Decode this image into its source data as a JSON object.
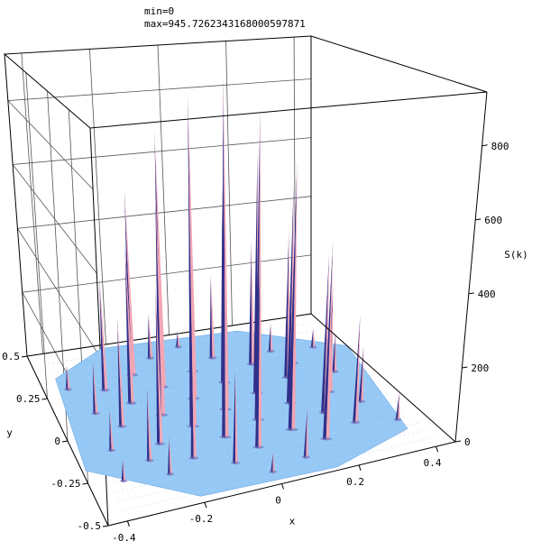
{
  "chart_data": {
    "type": "surface3d",
    "annotation": {
      "min_label": "min=0",
      "max_label": "max=945.7262343168000597871"
    },
    "x_axis": {
      "label": "x",
      "range": [
        -0.45,
        0.45
      ],
      "ticks": [
        {
          "value": -0.4,
          "label": "-0.4"
        },
        {
          "value": -0.2,
          "label": "-0.2"
        },
        {
          "value": 0,
          "label": "0"
        },
        {
          "value": 0.2,
          "label": "0.2"
        },
        {
          "value": 0.4,
          "label": "0.4"
        }
      ]
    },
    "y_axis": {
      "label": "y",
      "range": [
        -0.5,
        0.5
      ],
      "ticks": [
        {
          "value": -0.5,
          "label": "-0.5"
        },
        {
          "value": -0.25,
          "label": "-0.25"
        },
        {
          "value": 0,
          "label": "0"
        },
        {
          "value": 0.25,
          "label": "0.25"
        },
        {
          "value": 0.5,
          "label": "0.5"
        }
      ]
    },
    "z_axis": {
      "label": "S(k)",
      "range": [
        0,
        945.73
      ],
      "ticks": [
        {
          "value": 0,
          "label": "0"
        },
        {
          "value": 200,
          "label": "200"
        },
        {
          "value": 400,
          "label": "400"
        },
        {
          "value": 600,
          "label": "600"
        },
        {
          "value": 800,
          "label": "800"
        }
      ]
    },
    "surface_color": "#96c8f5",
    "spike_colors": {
      "light": "#f2a6b4",
      "dark": "#30308a"
    },
    "peaks": [
      {
        "x": 0.0,
        "y": 0.0,
        "z": 945.7
      },
      {
        "x": -0.06,
        "y": 0.1,
        "z": 880
      },
      {
        "x": 0.06,
        "y": -0.1,
        "z": 870
      },
      {
        "x": -0.12,
        "y": 0.2,
        "z": 760
      },
      {
        "x": 0.12,
        "y": -0.2,
        "z": 740
      },
      {
        "x": -0.18,
        "y": 0.3,
        "z": 560
      },
      {
        "x": 0.18,
        "y": -0.3,
        "z": 540
      },
      {
        "x": -0.11,
        "y": -0.06,
        "z": 720
      },
      {
        "x": 0.11,
        "y": 0.06,
        "z": 700
      },
      {
        "x": -0.17,
        "y": 0.04,
        "z": 640
      },
      {
        "x": 0.17,
        "y": -0.04,
        "z": 630
      },
      {
        "x": -0.05,
        "y": -0.16,
        "z": 600
      },
      {
        "x": 0.05,
        "y": 0.16,
        "z": 590
      },
      {
        "x": -0.23,
        "y": 0.14,
        "z": 460
      },
      {
        "x": 0.23,
        "y": -0.14,
        "z": 450
      },
      {
        "x": -0.22,
        "y": -0.12,
        "z": 420
      },
      {
        "x": 0.22,
        "y": 0.12,
        "z": 440
      },
      {
        "x": -0.28,
        "y": 0.24,
        "z": 330
      },
      {
        "x": 0.28,
        "y": -0.24,
        "z": 300
      },
      {
        "x": -0.01,
        "y": 0.26,
        "z": 520
      },
      {
        "x": 0.01,
        "y": -0.26,
        "z": 500
      },
      {
        "x": -0.29,
        "y": 0.02,
        "z": 300
      },
      {
        "x": 0.29,
        "y": -0.02,
        "z": 310
      },
      {
        "x": -0.16,
        "y": -0.24,
        "z": 360
      },
      {
        "x": 0.16,
        "y": 0.24,
        "z": 380
      },
      {
        "x": 0.07,
        "y": 0.32,
        "z": 260
      },
      {
        "x": -0.07,
        "y": -0.32,
        "z": 240
      },
      {
        "x": -0.34,
        "y": 0.12,
        "z": 150
      },
      {
        "x": 0.34,
        "y": -0.12,
        "z": 160
      },
      {
        "x": 0.27,
        "y": 0.2,
        "z": 200
      },
      {
        "x": -0.27,
        "y": -0.2,
        "z": 190
      },
      {
        "x": -0.35,
        "y": -0.1,
        "z": 110
      },
      {
        "x": 0.35,
        "y": 0.1,
        "z": 120
      },
      {
        "x": -0.1,
        "y": 0.38,
        "z": 140
      },
      {
        "x": 0.1,
        "y": -0.38,
        "z": 130
      },
      {
        "x": 0.24,
        "y": 0.3,
        "z": 90
      },
      {
        "x": -0.24,
        "y": -0.3,
        "z": 95
      },
      {
        "x": -0.38,
        "y": 0.28,
        "z": 70
      },
      {
        "x": 0.38,
        "y": -0.28,
        "z": 75
      },
      {
        "x": 0.36,
        "y": 0.28,
        "z": 60
      },
      {
        "x": -0.36,
        "y": -0.28,
        "z": 55
      },
      {
        "x": 0.0,
        "y": 0.42,
        "z": 50
      },
      {
        "x": 0.0,
        "y": -0.42,
        "z": 50
      }
    ]
  }
}
